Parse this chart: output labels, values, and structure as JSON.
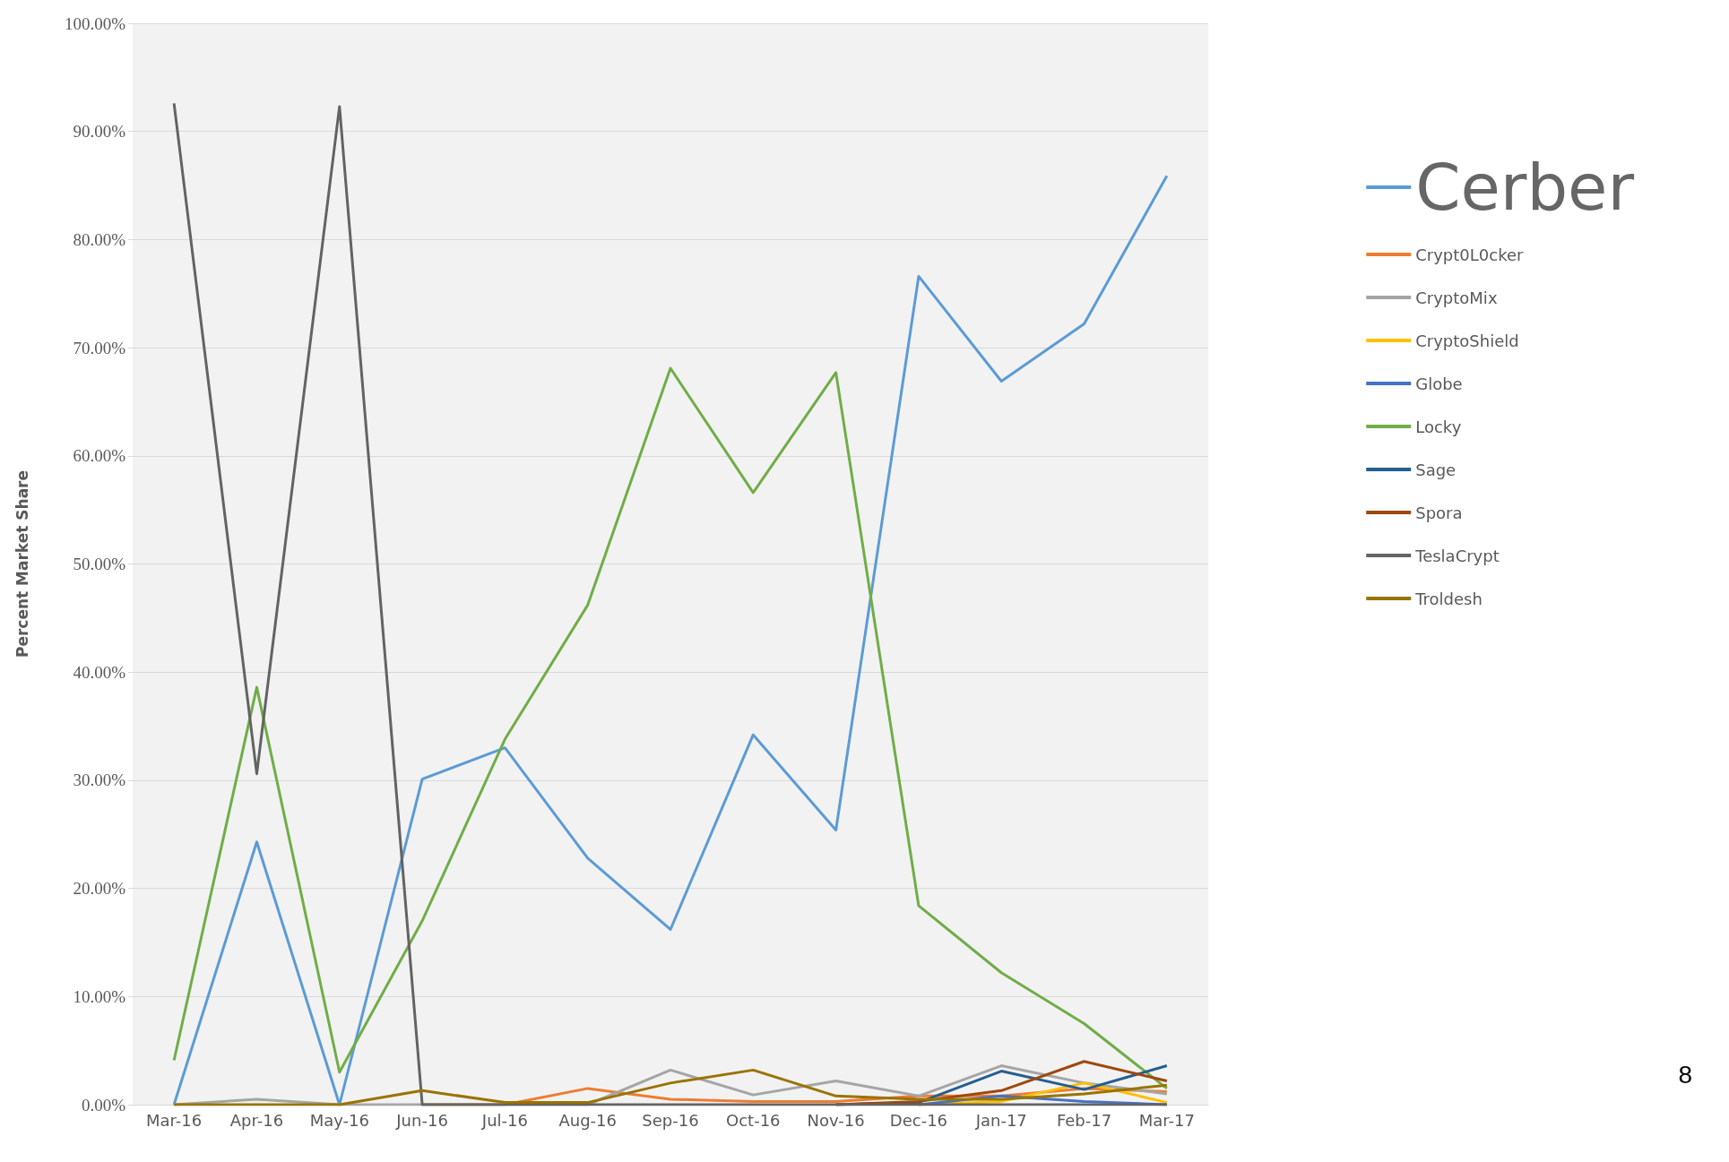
{
  "chart_data": {
    "type": "line",
    "ylabel": "Percent Market Share",
    "categories": [
      "Mar-16",
      "Apr-16",
      "May-16",
      "Jun-16",
      "Jul-16",
      "Aug-16",
      "Sep-16",
      "Oct-16",
      "Nov-16",
      "Dec-16",
      "Jan-17",
      "Feb-17",
      "Mar-17"
    ],
    "ylim": [
      0,
      100
    ],
    "yticks": [
      {
        "value": 0,
        "label": "0.00%"
      },
      {
        "value": 10,
        "label": "10.00%"
      },
      {
        "value": 20,
        "label": "20.00%"
      },
      {
        "value": 30,
        "label": "30.00%"
      },
      {
        "value": 40,
        "label": "40.00%"
      },
      {
        "value": 50,
        "label": "50.00%"
      },
      {
        "value": 60,
        "label": "60.00%"
      },
      {
        "value": 70,
        "label": "70.00%"
      },
      {
        "value": 80,
        "label": "80.00%"
      },
      {
        "value": 90,
        "label": "90.00%"
      },
      {
        "value": 100,
        "label": "100.00%"
      }
    ],
    "grid": "y",
    "legend": "right",
    "marker": "none",
    "line_style": "solid",
    "annotations": [
      "8"
    ],
    "series": [
      {
        "name": "Cerber",
        "color": "#5b9bd5",
        "values": [
          0,
          24.3,
          0,
          30.1,
          33,
          22.8,
          16.2,
          34.2,
          25.4,
          76.6,
          66.9,
          72.2,
          85.9
        ]
      },
      {
        "name": "Crypt0L0cker",
        "color": "#ed7d31",
        "values": [
          null,
          null,
          null,
          0,
          0,
          1.5,
          0.5,
          0.3,
          0.3,
          0.8,
          0.8,
          1.5,
          1.2
        ]
      },
      {
        "name": "CryptoMix",
        "color": "#a5a5a5",
        "values": [
          0,
          0.5,
          0,
          0,
          0,
          0,
          3.2,
          0.9,
          2.2,
          0.8,
          3.6,
          2.0,
          1.0
        ]
      },
      {
        "name": "CryptoShield",
        "color": "#ffc000",
        "values": [
          null,
          null,
          null,
          null,
          null,
          null,
          null,
          null,
          null,
          0,
          0.3,
          2.0,
          0.2
        ]
      },
      {
        "name": "Globe",
        "color": "#4472c4",
        "values": [
          null,
          null,
          null,
          null,
          null,
          null,
          null,
          null,
          null,
          0,
          0.8,
          0.3,
          0
        ]
      },
      {
        "name": "Locky",
        "color": "#70ad47",
        "values": [
          4.1,
          38.6,
          3.0,
          17,
          33.8,
          46.2,
          68.1,
          56.6,
          67.7,
          18.4,
          12.2,
          7.5,
          1.5
        ]
      },
      {
        "name": "Sage",
        "color": "#255e91",
        "values": [
          null,
          null,
          null,
          null,
          null,
          null,
          null,
          null,
          0,
          0.2,
          3.1,
          1.4,
          3.6
        ]
      },
      {
        "name": "Spora",
        "color": "#9e480e",
        "values": [
          null,
          null,
          null,
          null,
          null,
          null,
          null,
          null,
          0,
          0.3,
          1.3,
          4.0,
          2.2
        ]
      },
      {
        "name": "TeslaCrypt",
        "color": "#636363",
        "values": [
          92.6,
          30.6,
          92.3,
          0,
          0,
          0,
          0,
          0,
          0,
          0,
          0,
          0,
          0
        ]
      },
      {
        "name": "Troldesh",
        "color": "#997300",
        "values": [
          0,
          0,
          0,
          1.3,
          0.2,
          0.2,
          2.0,
          3.2,
          0.8,
          0.5,
          0.5,
          1.0,
          1.8
        ]
      }
    ]
  }
}
